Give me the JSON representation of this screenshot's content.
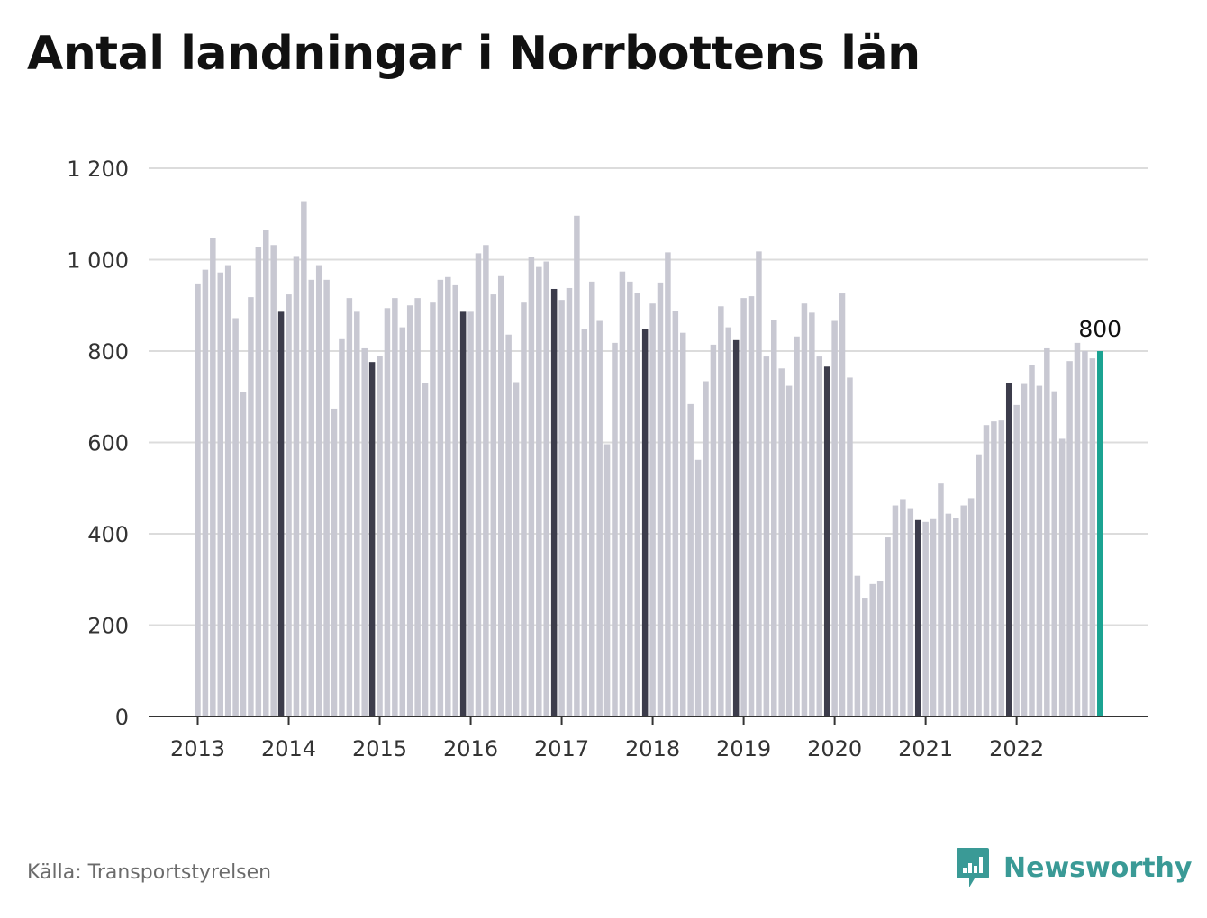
{
  "title": "Antal landningar i Norrbottens län",
  "source": "Källa: Transportstyrelsen",
  "brand": {
    "name": "Newsworthy",
    "icon": "newsworthy-logo-icon"
  },
  "colors": {
    "bar": "#c8c8d2",
    "december": "#3c3c4b",
    "latest": "#1ba392",
    "grid": "#dcdcdc",
    "axis": "#333333",
    "brand": "#3a9a96"
  },
  "chart_data": {
    "type": "bar",
    "title": "Antal landningar i Norrbottens län",
    "xlabel": "",
    "ylabel": "",
    "ylim": [
      0,
      1200
    ],
    "yticks": [
      0,
      200,
      400,
      600,
      800,
      1000,
      1200
    ],
    "ytick_labels": [
      "0",
      "200",
      "400",
      "600",
      "800",
      "1 000",
      "1 200"
    ],
    "x_tick_labels": [
      "2013",
      "2014",
      "2015",
      "2016",
      "2017",
      "2018",
      "2019",
      "2020",
      "2021",
      "2022"
    ],
    "grid": true,
    "start": "2013-01",
    "frequency": "monthly",
    "highlight": "december bars dark, latest bar teal",
    "latest_label": "800",
    "values": [
      948,
      978,
      1048,
      972,
      988,
      872,
      710,
      918,
      1028,
      1064,
      1032,
      886,
      924,
      1008,
      1128,
      956,
      988,
      956,
      674,
      826,
      916,
      886,
      806,
      776,
      790,
      894,
      916,
      852,
      900,
      916,
      730,
      906,
      956,
      962,
      944,
      886,
      886,
      1014,
      1032,
      924,
      964,
      836,
      732,
      906,
      1006,
      984,
      996,
      936,
      912,
      938,
      1096,
      848,
      952,
      866,
      596,
      818,
      974,
      952,
      928,
      848,
      904,
      950,
      1016,
      888,
      840,
      684,
      562,
      734,
      814,
      898,
      852,
      824,
      916,
      920,
      1018,
      788,
      868,
      762,
      724,
      832,
      904,
      884,
      788,
      766,
      866,
      926,
      742,
      308,
      260,
      290,
      296,
      392,
      462,
      476,
      456,
      430,
      426,
      432,
      510,
      444,
      434,
      462,
      478,
      574,
      638,
      646,
      648,
      730,
      682,
      728,
      770,
      724,
      806,
      712,
      608,
      778,
      818,
      800,
      784,
      800
    ]
  }
}
